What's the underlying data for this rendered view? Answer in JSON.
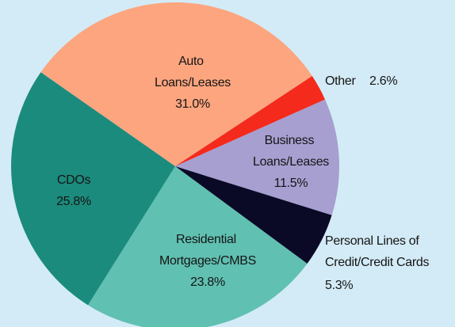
{
  "chart_data": {
    "type": "pie",
    "categories": [
      "Auto Loans/Leases",
      "Other",
      "Business Loans/Leases",
      "Personal Lines of Credit/Credit Cards",
      "Residential Mortgages/CMBS",
      "CDOs"
    ],
    "values": [
      31.0,
      2.6,
      11.5,
      5.3,
      23.8,
      25.8
    ],
    "value_labels": [
      "31.0%",
      "2.6%",
      "11.5%",
      "5.3%",
      "23.8%",
      "25.8%"
    ],
    "colors": [
      "#fca57f",
      "#f42a1c",
      "#a69fd0",
      "#0b0a26",
      "#60c0b1",
      "#1b8b7d"
    ]
  }
}
